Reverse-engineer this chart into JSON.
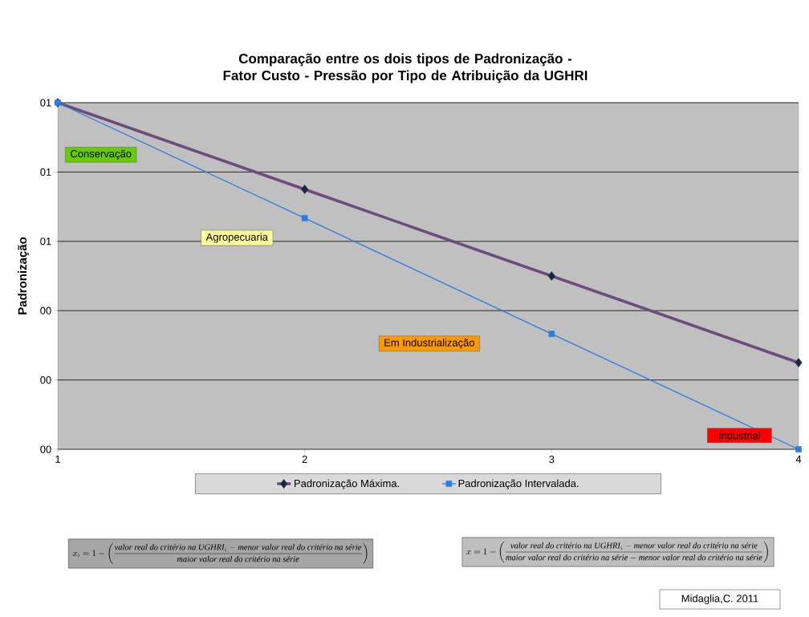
{
  "chart_data": {
    "type": "line",
    "title": "Comparação entre os dois tipos de Padronização - Fator Custo -  Pressão por Tipo de  Atribuição da UGHRI",
    "ylabel": "Padronização",
    "x": [
      1,
      2,
      3,
      4
    ],
    "xlim": [
      1,
      4
    ],
    "xticks": [
      1,
      2,
      3,
      4
    ],
    "ylim": [
      0,
      1
    ],
    "yticks": [
      {
        "value": 0,
        "label": "00"
      },
      {
        "value": 0.2,
        "label": "00"
      },
      {
        "value": 0.4,
        "label": "00"
      },
      {
        "value": 0.6,
        "label": "01"
      },
      {
        "value": 0.8,
        "label": "01"
      },
      {
        "value": 1,
        "label": "01"
      }
    ],
    "series": [
      {
        "name": "Padronização Máxima.",
        "color": "#6b4c7d",
        "marker": "diamond",
        "values": [
          1,
          0.75,
          0.5,
          0.25
        ]
      },
      {
        "name": "Padronização Intervalada.",
        "color": "#2f7ce0",
        "marker": "square",
        "values": [
          1,
          0.667,
          0.333,
          0
        ]
      }
    ],
    "grid": "y",
    "legend": "bottom",
    "annotations": [
      "Conservação",
      "Agropecuaria",
      "Em Industrialização",
      "Industrial",
      "x_i = 1 - \\left(\\frac{\\textit{valor real do critério na UGHRI}_i - \\textit{menor valor real do critério na série}}{\\textit{maior valor real do critério na série}}\\right)",
      "x = 1 - \\left(\\frac{\\textit{valor real do critério na UGHRI}_i - \\textit{menor valor real do critério na série}}{\\textit{maior valor real do critério na série} - \\textit{menor valor real do critério na série}}\\right)",
      "Midaglia,C.  2011"
    ]
  }
}
